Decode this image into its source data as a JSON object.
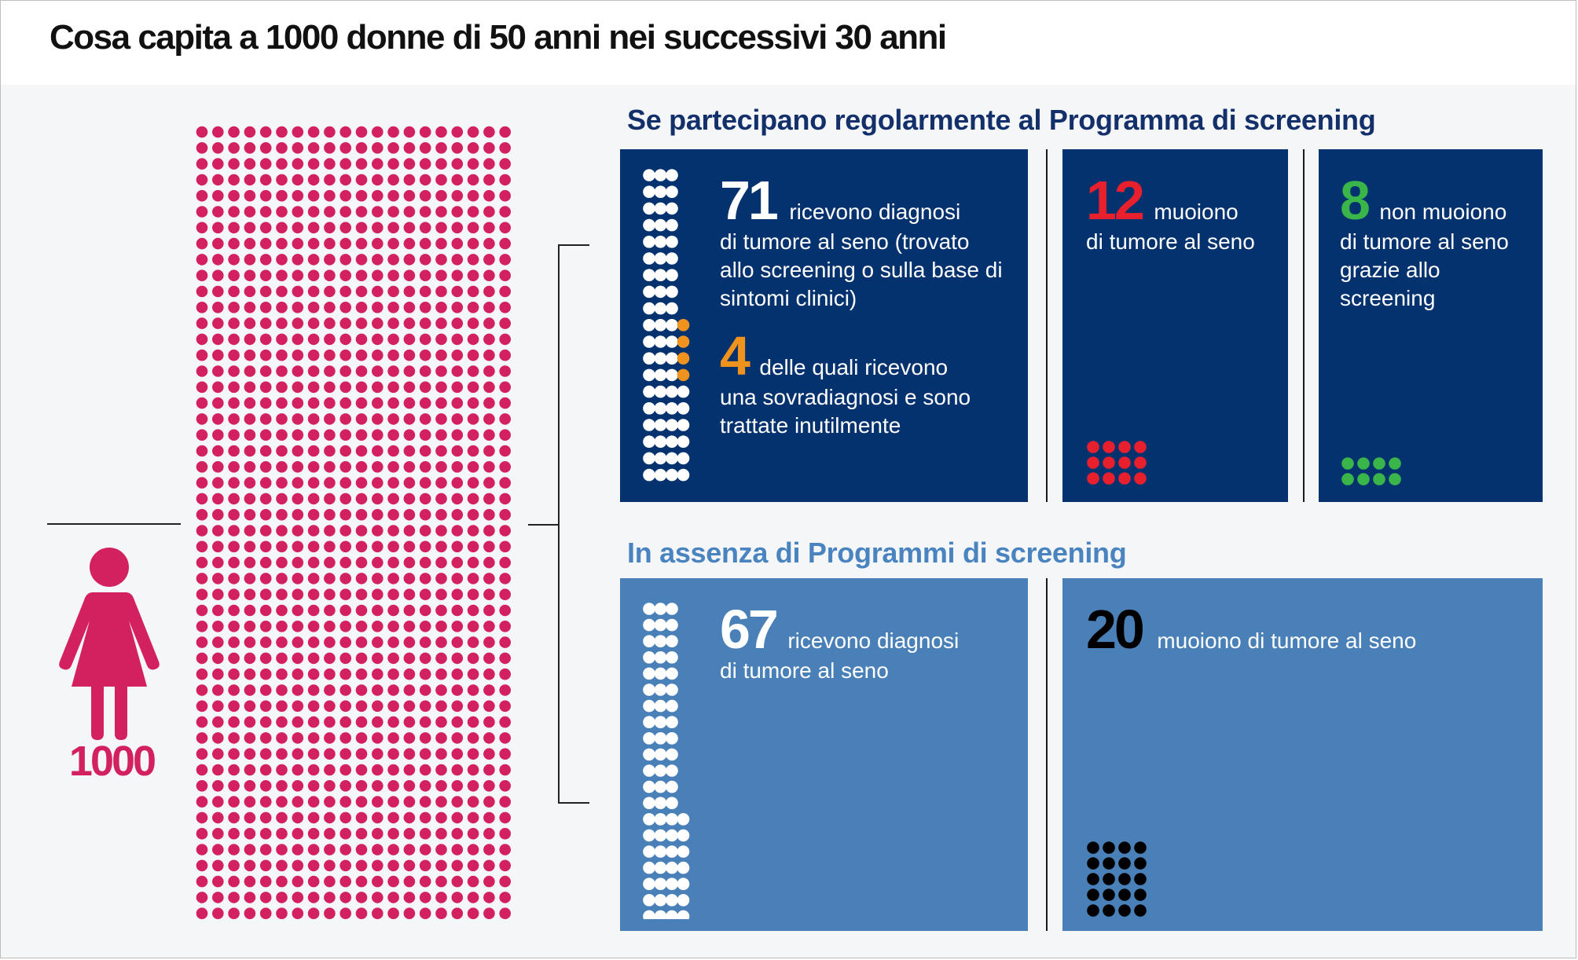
{
  "title": "Cosa capita a 1000 donne di 50 anni nei successivi 30 anni",
  "colors": {
    "population": "#d3215f",
    "dark_panel": "#04326f",
    "light_panel": "#4a80b8",
    "white_dot": "#ffffff",
    "overdiagnosis": "#f0921e",
    "deaths_screening": "#e8202e",
    "saved": "#3ab54a",
    "deaths_no_screening": "#000000"
  },
  "population": {
    "total_label": "1000",
    "dots": 1000,
    "icon": "woman-icon"
  },
  "with_screening": {
    "heading": "Se partecipano regolarmente al Programma di screening",
    "diagnosed": {
      "number": "71",
      "text_first": "ricevono diagnosi",
      "text_rest": "di tumore al seno (trovato allo screening o sulla base di sintomi clinici)",
      "dots": 71
    },
    "overdiagnosed": {
      "number": "4",
      "text_first": "delle quali ricevono",
      "text_rest": "una sovradiagnosi e sono trattate inutilmente",
      "dots": 4
    },
    "deaths": {
      "number": "12",
      "text_first": "muoiono",
      "text_rest": "di tumore al seno",
      "dots": 12
    },
    "saved": {
      "number": "8",
      "text_first": "non muoiono",
      "text_rest": "di tumore al seno grazie allo screening",
      "dots": 8
    }
  },
  "without_screening": {
    "heading": "In assenza di Programmi di screening",
    "diagnosed": {
      "number": "67",
      "text_first": "ricevono diagnosi",
      "text_rest": "di tumore al seno",
      "dots": 67
    },
    "deaths": {
      "number": "20",
      "text_first": "muoiono di tumore al seno",
      "dots": 20
    }
  }
}
